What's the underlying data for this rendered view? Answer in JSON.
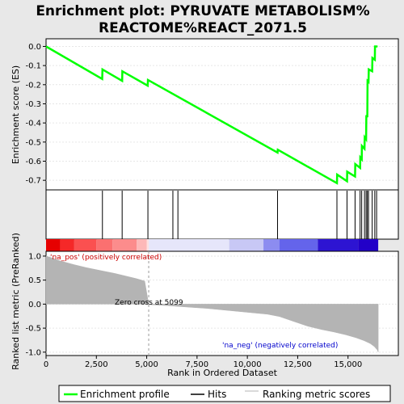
{
  "chart_data": {
    "type": "line",
    "title_line1": "Enrichment plot: PYRUVATE METABOLISM%",
    "title_line2": "REACTOME%REACT_2071.5",
    "es_panel": {
      "ylabel": "Enrichment score (ES)",
      "ylim": [
        -0.75,
        0.04
      ],
      "yticks": [
        "0.0",
        "-0.1",
        "-0.2",
        "-0.3",
        "-0.4",
        "-0.5",
        "-0.6",
        "-0.7"
      ],
      "ytick_values": [
        0.0,
        -0.1,
        -0.2,
        -0.3,
        -0.4,
        -0.5,
        -0.6,
        -0.7
      ],
      "series": [
        {
          "name": "Enrichment profile",
          "color": "#00ff00",
          "x": [
            0,
            2790,
            2800,
            3780,
            3790,
            5050,
            5060,
            11500,
            11510,
            14450,
            14460,
            14950,
            14960,
            15350,
            15360,
            15600,
            15610,
            15680,
            15690,
            15820,
            15830,
            15900,
            15910,
            15960,
            15970,
            16020,
            16030,
            16200,
            16210,
            16330,
            16340,
            16420,
            16430
          ],
          "y": [
            0.0,
            -0.17,
            -0.12,
            -0.18,
            -0.13,
            -0.205,
            -0.175,
            -0.555,
            -0.54,
            -0.715,
            -0.67,
            -0.705,
            -0.655,
            -0.68,
            -0.615,
            -0.635,
            -0.58,
            -0.59,
            -0.52,
            -0.535,
            -0.475,
            -0.485,
            -0.36,
            -0.37,
            -0.18,
            -0.185,
            -0.12,
            -0.13,
            -0.06,
            -0.07,
            0.0,
            0.0,
            0.005
          ]
        }
      ]
    },
    "hits": {
      "name": "Hits",
      "positions": [
        2800,
        3780,
        5060,
        6300,
        6550,
        11500,
        14450,
        14950,
        15350,
        15600,
        15680,
        15820,
        15900,
        15960,
        16020,
        16200,
        16330,
        16420
      ]
    },
    "colorbar": {
      "segments": [
        {
          "from": 0,
          "to": 700,
          "color": "#e60000"
        },
        {
          "from": 700,
          "to": 1400,
          "color": "#f52828"
        },
        {
          "from": 1400,
          "to": 2500,
          "color": "#fb5050"
        },
        {
          "from": 2500,
          "to": 3300,
          "color": "#fb7070"
        },
        {
          "from": 3300,
          "to": 4500,
          "color": "#fc8c8c"
        },
        {
          "from": 4500,
          "to": 5000,
          "color": "#fdb8b8"
        },
        {
          "from": 5000,
          "to": 5100,
          "color": "#fde0e0"
        },
        {
          "from": 5100,
          "to": 9100,
          "color": "#e6e6fa"
        },
        {
          "from": 9100,
          "to": 10800,
          "color": "#c8c8f5"
        },
        {
          "from": 10800,
          "to": 11600,
          "color": "#8c8cf0"
        },
        {
          "from": 11600,
          "to": 13500,
          "color": "#6464eb"
        },
        {
          "from": 13500,
          "to": 15500,
          "color": "#2d14d2"
        },
        {
          "from": 15500,
          "to": 16500,
          "color": "#2200c8"
        }
      ]
    },
    "metric_panel": {
      "ylabel": "Ranked list metric (PreRanked)",
      "xlabel": "Rank in Ordered Dataset",
      "ylim": [
        -1.07,
        1.1
      ],
      "yticks": [
        "1.0",
        "0.5",
        "0.0",
        "-0.5",
        "-1.0"
      ],
      "ytick_values": [
        1.0,
        0.5,
        0.0,
        -0.5,
        -1.0
      ],
      "xlim": [
        0,
        17500
      ],
      "xticks": [
        "0",
        "2,500",
        "5,000",
        "7,500",
        "10,000",
        "12,500",
        "15,000"
      ],
      "xtick_values": [
        0,
        2500,
        5000,
        7500,
        10000,
        12500,
        15000
      ],
      "series": [
        {
          "name": "Ranking metric scores",
          "color": "#b4b4b4",
          "x": [
            0,
            300,
            700,
            1400,
            2000,
            2700,
            3400,
            4000,
            4500,
            4900,
            5099,
            5100,
            6000,
            7000,
            8000,
            9000,
            10000,
            11000,
            11600,
            12300,
            13000,
            13700,
            14300,
            14900,
            15400,
            15800,
            16100,
            16300,
            16450,
            16500
          ],
          "y": [
            1.0,
            0.96,
            0.9,
            0.82,
            0.76,
            0.7,
            0.64,
            0.58,
            0.53,
            0.48,
            0.0,
            -0.01,
            -0.03,
            -0.06,
            -0.09,
            -0.13,
            -0.17,
            -0.21,
            -0.26,
            -0.36,
            -0.46,
            -0.53,
            -0.58,
            -0.64,
            -0.7,
            -0.76,
            -0.82,
            -0.88,
            -0.95,
            -1.0
          ]
        }
      ],
      "annotations": {
        "pos_label": "'na_pos' (positively correlated)",
        "neg_label": "'na_neg' (negatively correlated)",
        "zero_cross": "Zero cross at 5099",
        "zero_cross_x": 5099
      }
    },
    "legend": {
      "items": [
        {
          "label": "Enrichment profile",
          "color": "#00ff00"
        },
        {
          "label": "Hits",
          "color": "#000000"
        },
        {
          "label": "Ranking metric scores",
          "color": "#b4b4b4"
        }
      ]
    }
  }
}
